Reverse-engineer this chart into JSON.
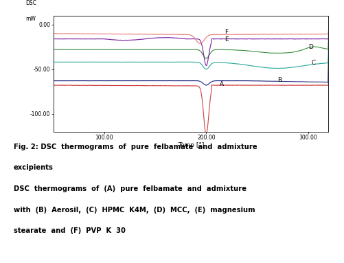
{
  "xlabel": "Temp [°]",
  "xlim": [
    50,
    320
  ],
  "ylim": [
    -120,
    10
  ],
  "yticks": [
    0.0,
    -50.0,
    -100.0
  ],
  "xticks": [
    100.0,
    200.0,
    300.0
  ],
  "colors": {
    "A": "#d04040",
    "B": "#1a237e",
    "C": "#26a69a",
    "D": "#388e3c",
    "E": "#7b1fa2",
    "F": "#e57373"
  },
  "bg_color": "#ffffff"
}
